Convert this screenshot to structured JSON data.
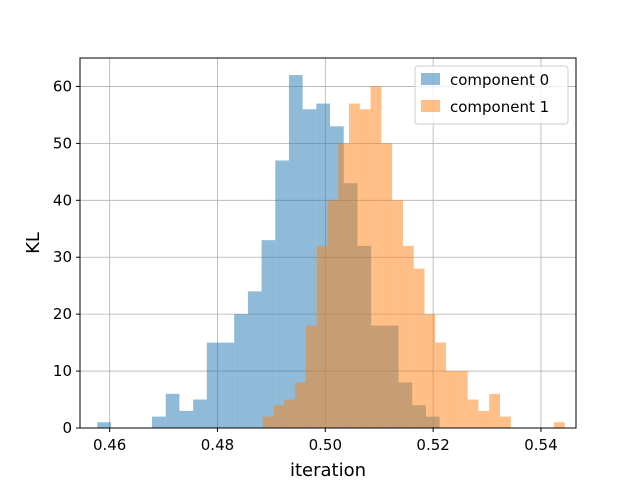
{
  "chart_data": {
    "type": "histogram",
    "title": "",
    "xlabel": "iteration",
    "ylabel": "KL",
    "xlim": [
      0.4545,
      0.5465
    ],
    "ylim": [
      0,
      65
    ],
    "xticks": [
      0.46,
      0.48,
      0.5,
      0.52,
      0.54
    ],
    "xtick_labels": [
      "0.46",
      "0.48",
      "0.50",
      "0.52",
      "0.54"
    ],
    "yticks": [
      0,
      10,
      20,
      30,
      40,
      50,
      60
    ],
    "ytick_labels": [
      "0",
      "10",
      "20",
      "30",
      "40",
      "50",
      "60"
    ],
    "grid": true,
    "legend_position": "top-right",
    "series": [
      {
        "name": "component 0",
        "color": "#1f77b4",
        "alpha": 0.5,
        "bin_start": 0.4577,
        "bin_width": 0.00254,
        "counts": [
          1,
          0,
          0,
          0,
          2,
          6,
          3,
          5,
          15,
          15,
          20,
          24,
          33,
          47,
          62,
          56,
          57,
          53,
          43,
          32,
          18,
          18,
          8,
          4,
          2
        ]
      },
      {
        "name": "component 1",
        "color": "#ff7f0e",
        "alpha": 0.5,
        "bin_start": 0.4884,
        "bin_width": 0.002,
        "counts": [
          2,
          4,
          5,
          8,
          18,
          32,
          40,
          50,
          57,
          56,
          60,
          50,
          40,
          32,
          28,
          20,
          15,
          10,
          10,
          5,
          3,
          6,
          2,
          0,
          0,
          0,
          0,
          1
        ]
      }
    ]
  }
}
